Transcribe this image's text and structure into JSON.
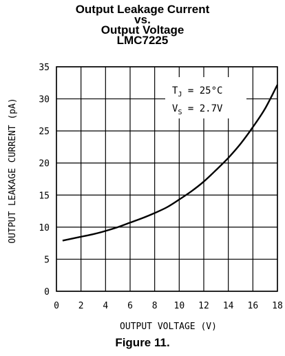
{
  "chart_data": {
    "type": "line",
    "title_lines": [
      "Output Leakage Current",
      "vs.",
      "Output Voltage",
      "LMC7225"
    ],
    "xlabel": "OUTPUT VOLTAGE (V)",
    "ylabel": "OUTPUT LEAKAGE CURRENT (pA)",
    "xlim": [
      0,
      18
    ],
    "ylim": [
      0,
      35
    ],
    "xticks": [
      0,
      2,
      4,
      6,
      8,
      10,
      12,
      14,
      16,
      18
    ],
    "yticks": [
      0,
      5,
      10,
      15,
      20,
      25,
      30,
      35
    ],
    "grid": true,
    "annotation": {
      "line1": {
        "symbol": "T",
        "subscript": "J",
        "rest": " = 25°C"
      },
      "line2": {
        "symbol": "V",
        "subscript": "S",
        "rest": " = 2.7V"
      }
    },
    "series": [
      {
        "x": [
          0.5,
          1,
          2,
          3,
          4,
          5,
          6,
          7,
          8,
          9,
          10,
          11,
          12,
          13,
          14,
          15,
          16,
          17,
          18
        ],
        "y": [
          7.9,
          8.1,
          8.5,
          8.9,
          9.4,
          10.0,
          10.7,
          11.4,
          12.2,
          13.1,
          14.3,
          15.6,
          17.1,
          18.9,
          20.8,
          23.0,
          25.6,
          28.5,
          32.2
        ]
      }
    ],
    "caption": "Figure 11."
  }
}
